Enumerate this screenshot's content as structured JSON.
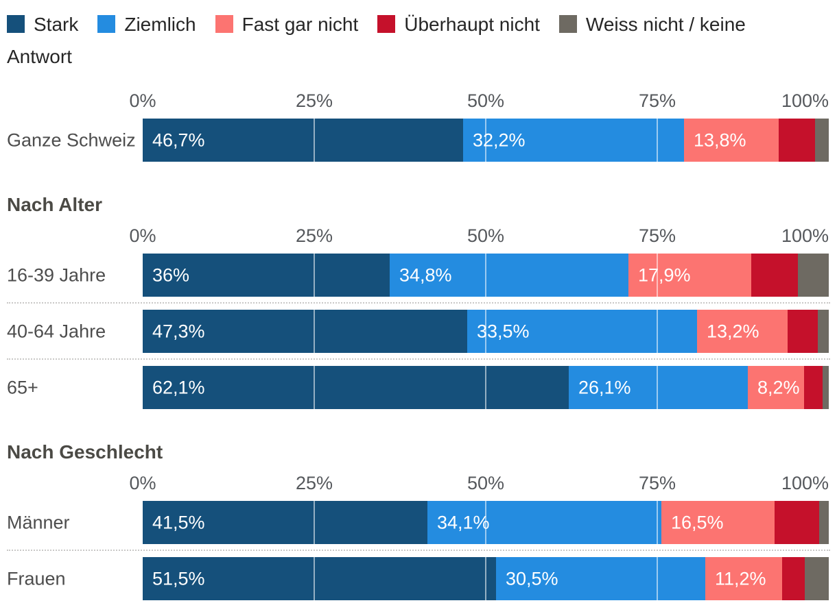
{
  "accent_colors": {
    "stark": "#15507b",
    "ziemlich": "#248ce0",
    "fast_gar_nicht": "#fc7471",
    "ueberhaupt_nicht": "#c5112b",
    "weiss_nicht": "#6e6a62"
  },
  "legend": {
    "items": [
      {
        "label": "Stark",
        "color": "#15507b"
      },
      {
        "label": "Ziemlich",
        "color": "#248ce0"
      },
      {
        "label": "Fast gar nicht",
        "color": "#fc7471"
      },
      {
        "label": "Überhaupt nicht",
        "color": "#c5112b"
      },
      {
        "label": "Weiss nicht / keine Antwort",
        "color": "#6e6a62"
      }
    ]
  },
  "chart_data": {
    "type": "bar",
    "orientation": "horizontal",
    "stacked": true,
    "units": "percent",
    "xlim": [
      0,
      100
    ],
    "x_ticks": [
      "0%",
      "25%",
      "50%",
      "75%",
      "100%"
    ],
    "gridlines_at": [
      25,
      50,
      75
    ],
    "legend_position": "top",
    "series_names": [
      "Stark",
      "Ziemlich",
      "Fast gar nicht",
      "Überhaupt nicht",
      "Weiss nicht / keine Antwort"
    ],
    "series_colors": [
      "#15507b",
      "#248ce0",
      "#fc7471",
      "#c5112b",
      "#6e6a62"
    ],
    "sections": [
      {
        "title": "",
        "rows": [
          {
            "label": "Ganze Schweiz",
            "values": [
              46.7,
              32.2,
              13.8,
              5.3,
              2.0
            ],
            "value_labels": [
              "46,7%",
              "32,2%",
              "13,8%",
              "",
              ""
            ]
          }
        ]
      },
      {
        "title": "Nach Alter",
        "rows": [
          {
            "label": "16-39 Jahre",
            "values": [
              36.0,
              34.8,
              17.9,
              6.8,
              4.5
            ],
            "value_labels": [
              "36%",
              "34,8%",
              "17,9%",
              "",
              ""
            ]
          },
          {
            "label": "40-64 Jahre",
            "values": [
              47.3,
              33.5,
              13.2,
              4.4,
              1.6
            ],
            "value_labels": [
              "47,3%",
              "33,5%",
              "13,2%",
              "",
              ""
            ]
          },
          {
            "label": "65+",
            "values": [
              62.1,
              26.1,
              8.2,
              2.7,
              0.9
            ],
            "value_labels": [
              "62,1%",
              "26,1%",
              "8,2%",
              "",
              ""
            ]
          }
        ]
      },
      {
        "title": "Nach Geschlecht",
        "rows": [
          {
            "label": "Männer",
            "values": [
              41.5,
              34.1,
              16.5,
              6.5,
              1.4
            ],
            "value_labels": [
              "41,5%",
              "34,1%",
              "16,5%",
              "",
              ""
            ]
          },
          {
            "label": "Frauen",
            "values": [
              51.5,
              30.5,
              11.2,
              3.3,
              3.5
            ],
            "value_labels": [
              "51,5%",
              "30,5%",
              "11,2%",
              "",
              ""
            ]
          }
        ]
      }
    ]
  }
}
